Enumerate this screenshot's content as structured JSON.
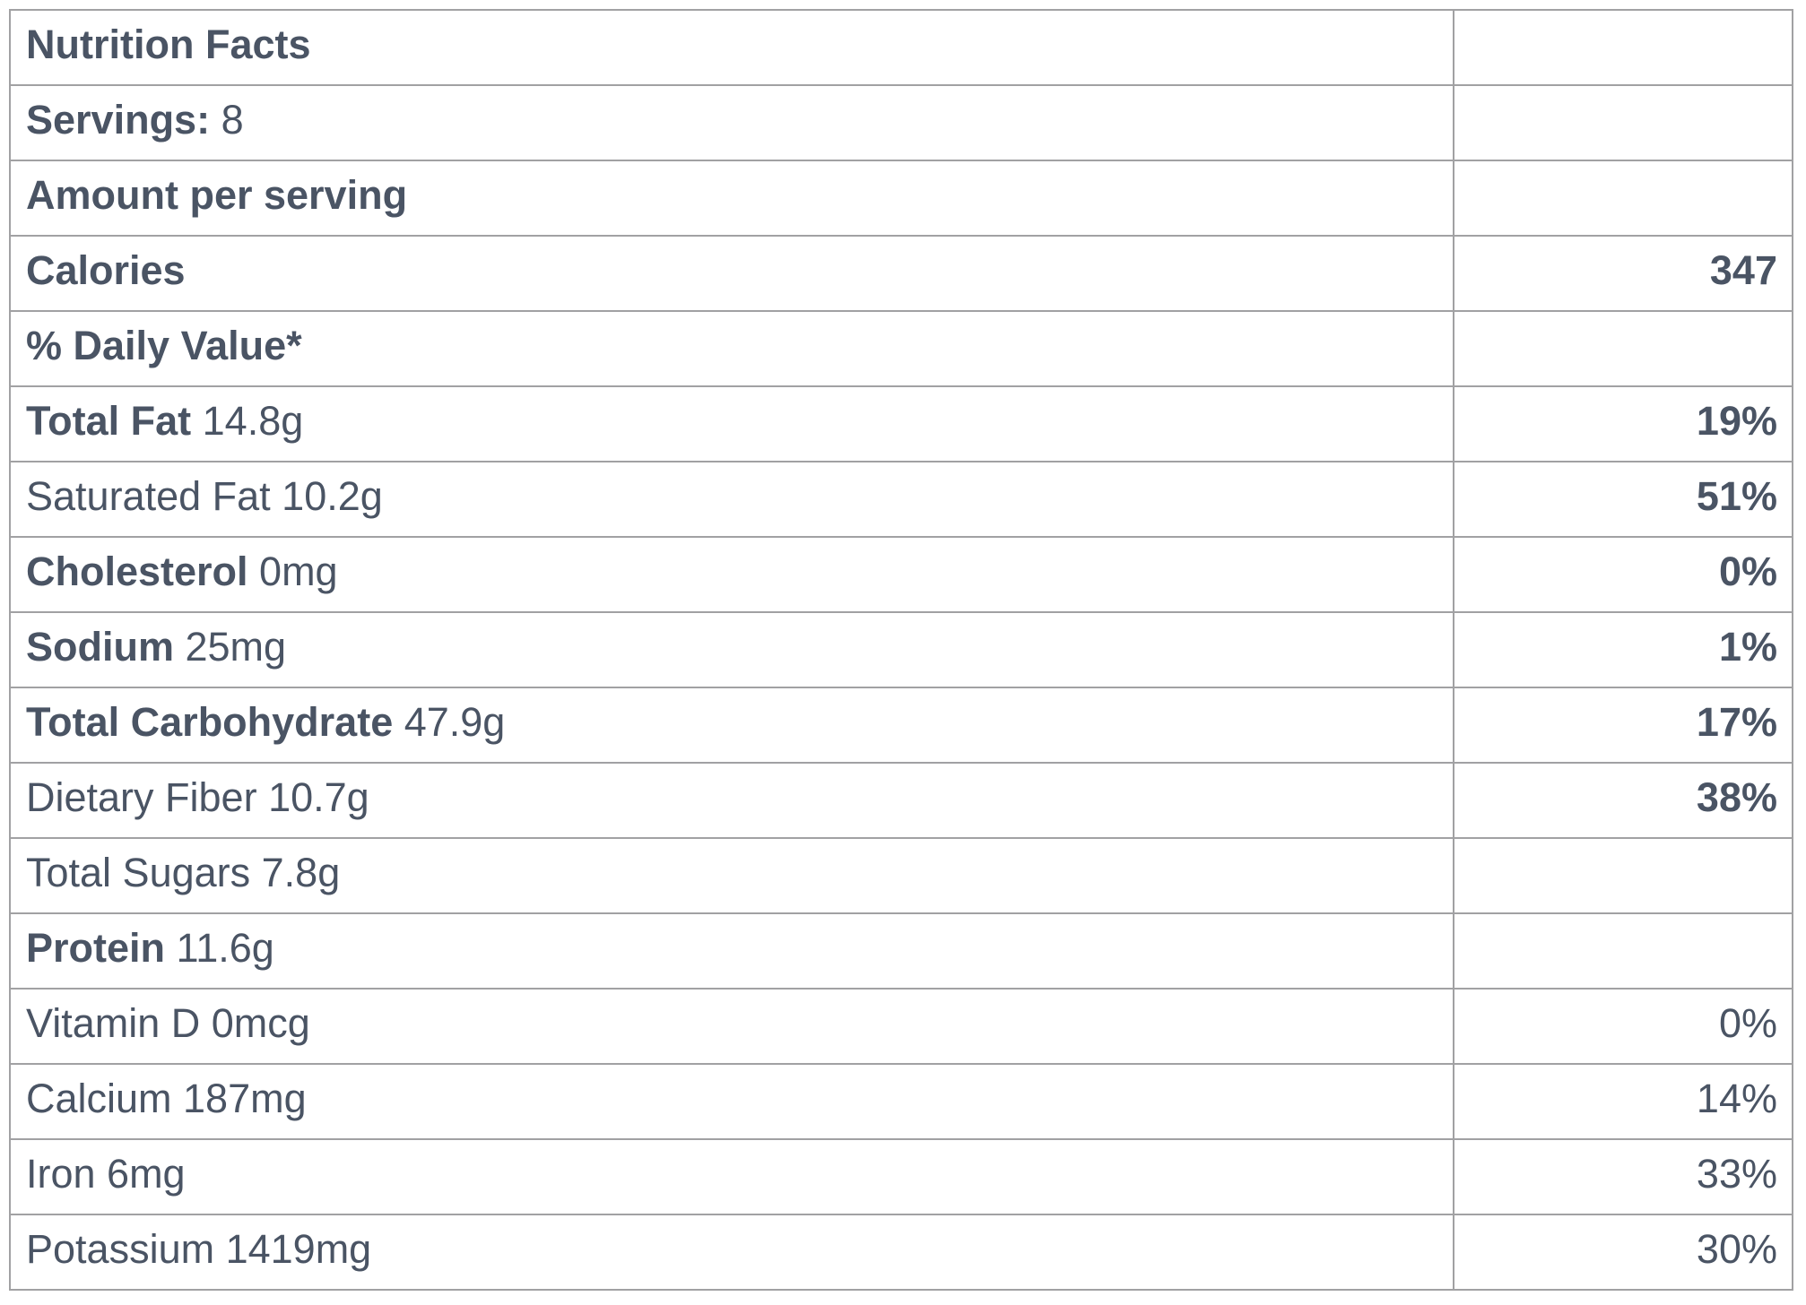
{
  "table": {
    "rows": [
      {
        "label_bold": "Nutrition Facts",
        "label_regular": "",
        "value": "",
        "value_bold": false
      },
      {
        "label_bold": "Servings:",
        "label_regular": " 8",
        "value": "",
        "value_bold": false
      },
      {
        "label_bold": "Amount per serving",
        "label_regular": "",
        "value": "",
        "value_bold": false
      },
      {
        "label_bold": "Calories",
        "label_regular": "",
        "value": "347",
        "value_bold": true
      },
      {
        "label_bold": "% Daily Value*",
        "label_regular": "",
        "value": "",
        "value_bold": false
      },
      {
        "label_bold": "Total Fat",
        "label_regular": " 14.8g",
        "value": "19%",
        "value_bold": true
      },
      {
        "label_bold": "",
        "label_regular": "Saturated Fat 10.2g",
        "value": "51%",
        "value_bold": true
      },
      {
        "label_bold": "Cholesterol",
        "label_regular": " 0mg",
        "value": "0%",
        "value_bold": true
      },
      {
        "label_bold": "Sodium",
        "label_regular": " 25mg",
        "value": "1%",
        "value_bold": true
      },
      {
        "label_bold": "Total Carbohydrate",
        "label_regular": " 47.9g",
        "value": "17%",
        "value_bold": true
      },
      {
        "label_bold": "",
        "label_regular": "Dietary Fiber 10.7g",
        "value": "38%",
        "value_bold": true
      },
      {
        "label_bold": "",
        "label_regular": "Total Sugars 7.8g",
        "value": "",
        "value_bold": false
      },
      {
        "label_bold": "Protein",
        "label_regular": " 11.6g",
        "value": "",
        "value_bold": false
      },
      {
        "label_bold": "",
        "label_regular": "Vitamin D 0mcg",
        "value": "0%",
        "value_bold": false
      },
      {
        "label_bold": "",
        "label_regular": "Calcium 187mg",
        "value": "14%",
        "value_bold": false
      },
      {
        "label_bold": "",
        "label_regular": "Iron 6mg",
        "value": "33%",
        "value_bold": false
      },
      {
        "label_bold": "",
        "label_regular": "Potassium 1419mg",
        "value": "30%",
        "value_bold": false
      }
    ]
  },
  "colors": {
    "text": "#4a5464",
    "border": "#a1a1a3",
    "background": "#ffffff"
  }
}
